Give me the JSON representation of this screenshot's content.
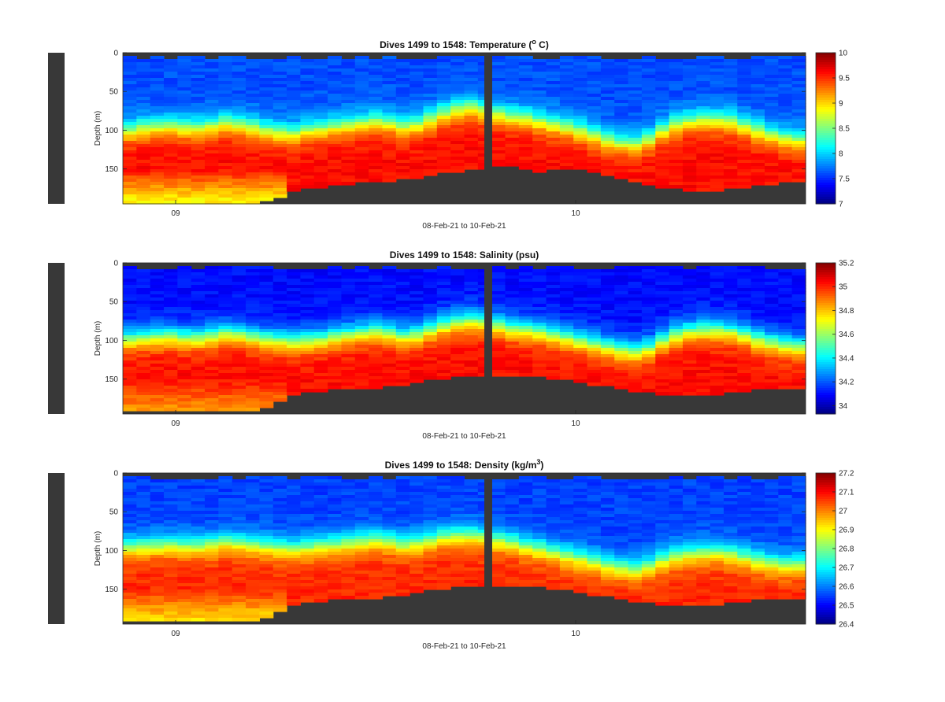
{
  "chart_data": [
    {
      "type": "heatmap",
      "title": "Dives 1499 to 1548: Temperature (",
      "title_sup": "o",
      "title_end": " C)",
      "ylabel": "Depth (m)",
      "xlabel": "08-Feb-21 to 10-Feb-21",
      "y_ticks": [
        "0",
        "50",
        "100",
        "150"
      ],
      "x_ticks": [
        "09",
        "10"
      ],
      "ylim": [
        0,
        195
      ],
      "y_reversed": true,
      "colormap": "jet",
      "clim": [
        7,
        10
      ],
      "colorbar_ticks": [
        "10",
        "9.5",
        "9",
        "8.5",
        "8",
        "7.5",
        "7"
      ],
      "colorbar_values": [
        10,
        9.5,
        9,
        8.5,
        8,
        7.5,
        7
      ],
      "surface_value": 7.6,
      "deep_value": 9.6,
      "gap_value": 9.3,
      "bottom_value": 8.9,
      "thermocline_depth": [
        100,
        96,
        95,
        94,
        96,
        96,
        94,
        90,
        92,
        95,
        100,
        102,
        104,
        100,
        98,
        95,
        92,
        90,
        88,
        90,
        95,
        92,
        85,
        78,
        72,
        70,
        74,
        78,
        82,
        84,
        88,
        92,
        96,
        100,
        106,
        112,
        116,
        118,
        112,
        100,
        92,
        88,
        86,
        86,
        88,
        94,
        100,
        106,
        110,
        112
      ],
      "bottom_depth": [
        195,
        195,
        195,
        195,
        195,
        195,
        195,
        195,
        195,
        195,
        190,
        188,
        180,
        175,
        173,
        171,
        169,
        168,
        166,
        165,
        164,
        162,
        159,
        156,
        154,
        152,
        150,
        148,
        146,
        150,
        154,
        152,
        150,
        152,
        156,
        160,
        164,
        168,
        172,
        174,
        176,
        178,
        180,
        178,
        176,
        174,
        172,
        170,
        168,
        166
      ]
    },
    {
      "type": "heatmap",
      "title": "Dives 1499 to 1548: Salinity (psu)",
      "ylabel": "Depth (m)",
      "xlabel": "08-Feb-21 to 10-Feb-21",
      "y_ticks": [
        "0",
        "50",
        "100",
        "150"
      ],
      "x_ticks": [
        "09",
        "10"
      ],
      "ylim": [
        0,
        195
      ],
      "y_reversed": true,
      "colormap": "jet",
      "clim": [
        33.93,
        35.2
      ],
      "colorbar_ticks": [
        "35.2",
        "35",
        "34.8",
        "34.6",
        "34.4",
        "34.2",
        "34"
      ],
      "colorbar_values": [
        35.2,
        35.0,
        34.8,
        34.6,
        34.4,
        34.2,
        34.0
      ],
      "surface_value": 34.1,
      "deep_value": 35.03,
      "gap_value": 34.95,
      "bottom_value": 34.85,
      "thermocline_depth": [
        98,
        96,
        95,
        94,
        96,
        96,
        94,
        90,
        92,
        95,
        98,
        100,
        102,
        100,
        98,
        95,
        92,
        90,
        88,
        90,
        94,
        92,
        86,
        80,
        76,
        74,
        76,
        80,
        84,
        86,
        88,
        92,
        96,
        100,
        104,
        108,
        112,
        114,
        110,
        100,
        92,
        88,
        86,
        86,
        88,
        92,
        98,
        102,
        106,
        108
      ],
      "bottom_depth": [
        192,
        192,
        192,
        192,
        192,
        192,
        192,
        192,
        192,
        190,
        186,
        180,
        172,
        168,
        166,
        164,
        162,
        162,
        161,
        160,
        158,
        156,
        152,
        150,
        148,
        146,
        146,
        146,
        146,
        146,
        148,
        150,
        152,
        155,
        158,
        160,
        163,
        166,
        168,
        170,
        170,
        172,
        172,
        170,
        168,
        166,
        164,
        164,
        163,
        162
      ]
    },
    {
      "type": "heatmap",
      "title": "Dives 1499 to 1548: Density (kg/m",
      "title_sup": "3",
      "title_end": ")",
      "ylabel": "Depth (m)",
      "xlabel": "08-Feb-21 to 10-Feb-21",
      "y_ticks": [
        "0",
        "50",
        "100",
        "150"
      ],
      "x_ticks": [
        "09",
        "10"
      ],
      "ylim": [
        0,
        195
      ],
      "y_reversed": true,
      "colormap": "jet",
      "clim": [
        26.4,
        27.2
      ],
      "colorbar_ticks": [
        "27.2",
        "27.1",
        "27",
        "26.9",
        "26.8",
        "26.7",
        "26.6",
        "26.5",
        "26.4"
      ],
      "colorbar_values": [
        27.2,
        27.1,
        27.0,
        26.9,
        26.8,
        26.7,
        26.6,
        26.5,
        26.4
      ],
      "surface_value": 26.55,
      "deep_value": 27.07,
      "gap_value": 26.98,
      "bottom_value": 26.92,
      "thermocline_depth": [
        95,
        94,
        93,
        92,
        94,
        94,
        92,
        88,
        90,
        92,
        94,
        96,
        98,
        96,
        94,
        92,
        90,
        88,
        86,
        88,
        92,
        90,
        86,
        82,
        80,
        80,
        82,
        86,
        90,
        94,
        98,
        102,
        106,
        110,
        114,
        118,
        122,
        124,
        120,
        112,
        106,
        104,
        102,
        102,
        104,
        108,
        112,
        116,
        118,
        118
      ],
      "bottom_depth": [
        192,
        192,
        192,
        192,
        192,
        192,
        192,
        192,
        192,
        190,
        186,
        180,
        172,
        168,
        166,
        164,
        162,
        162,
        161,
        160,
        158,
        156,
        152,
        150,
        148,
        146,
        146,
        146,
        146,
        146,
        148,
        150,
        152,
        155,
        158,
        160,
        163,
        166,
        168,
        170,
        170,
        172,
        172,
        170,
        168,
        166,
        164,
        164,
        163,
        162
      ]
    }
  ],
  "colors": {
    "no_data": "#383838",
    "axis": "#262626"
  }
}
